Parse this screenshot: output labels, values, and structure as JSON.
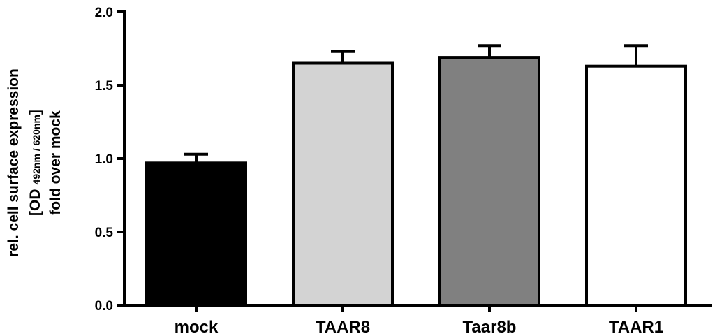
{
  "chart_data": {
    "type": "bar",
    "categories": [
      "mock",
      "TAAR8",
      "Taar8b",
      "TAAR1"
    ],
    "values": [
      0.97,
      1.65,
      1.69,
      1.63
    ],
    "error_upper": [
      1.03,
      1.73,
      1.77,
      1.77
    ],
    "bar_colors": [
      "#000000",
      "#d3d3d3",
      "#808080",
      "#ffffff"
    ],
    "ylim": [
      0,
      2.0
    ],
    "yticks": [
      "0.0",
      "0.5",
      "1.0",
      "1.5",
      "2.0"
    ],
    "ytick_values": [
      0,
      0.5,
      1.0,
      1.5,
      2.0
    ],
    "ylabel": {
      "line1": "rel. cell surface expression",
      "line2_prefix": "[OD",
      "line2_subscript": "492nm / 620nm",
      "line2_suffix": "]",
      "line3": "fold over mock"
    },
    "xlabel": "",
    "title": "",
    "grid": false,
    "legend": false
  }
}
